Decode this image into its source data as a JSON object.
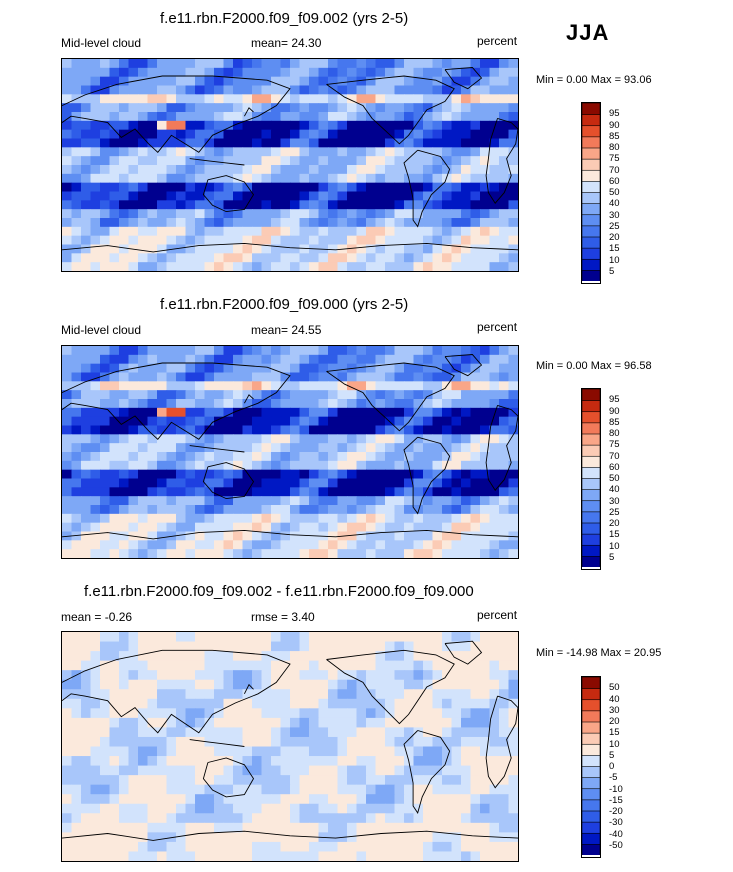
{
  "season": "JJA",
  "panels": [
    {
      "title": "f.e11.rbn.F2000.f09_f09.002 (yrs 2-5)",
      "left_label": "Mid-level cloud",
      "center_label": "mean=  24.30",
      "right_label": "percent",
      "minmax": "Min =   0.00 Max =  93.06",
      "kind": "abs"
    },
    {
      "title": "f.e11.rbn.F2000.f09_f09.000 (yrs 2-5)",
      "left_label": "Mid-level cloud",
      "center_label": "mean=  24.55",
      "right_label": "percent",
      "minmax": "Min =   0.00 Max =  96.58",
      "kind": "abs"
    },
    {
      "title": "f.e11.rbn.F2000.f09_f09.002 - f.e11.rbn.F2000.f09_f09.000",
      "left_label": "mean =  -0.26",
      "center_label": "rmse =   3.40",
      "right_label": "percent",
      "minmax": "Min = -14.98 Max =  20.95",
      "kind": "diff"
    }
  ],
  "chart_data": [
    {
      "type": "heatmap",
      "title": "f.e11.rbn.F2000.f09_f09.002 (yrs 2-5)",
      "variable": "Mid-level cloud",
      "units": "percent",
      "mean": 24.3,
      "min": 0.0,
      "max": 93.06,
      "colorbar_levels": [
        5,
        10,
        15,
        20,
        25,
        30,
        40,
        50,
        60,
        70,
        75,
        80,
        85,
        90,
        95
      ],
      "colors": [
        "#00008f",
        "#0018c4",
        "#1e3fe0",
        "#2f5de8",
        "#4677ee",
        "#5e8ef2",
        "#7ea8f6",
        "#a8c6fa",
        "#d2e3fc",
        "#fbe9dc",
        "#fbcbb5",
        "#f9a688",
        "#f27a5a",
        "#e5502c",
        "#c62a10",
        "#8a0a00"
      ]
    },
    {
      "type": "heatmap",
      "title": "f.e11.rbn.F2000.f09_f09.000 (yrs 2-5)",
      "variable": "Mid-level cloud",
      "units": "percent",
      "mean": 24.55,
      "min": 0.0,
      "max": 96.58,
      "colorbar_levels": [
        5,
        10,
        15,
        20,
        25,
        30,
        40,
        50,
        60,
        70,
        75,
        80,
        85,
        90,
        95
      ],
      "colors": [
        "#00008f",
        "#0018c4",
        "#1e3fe0",
        "#2f5de8",
        "#4677ee",
        "#5e8ef2",
        "#7ea8f6",
        "#a8c6fa",
        "#d2e3fc",
        "#fbe9dc",
        "#fbcbb5",
        "#f9a688",
        "#f27a5a",
        "#e5502c",
        "#c62a10",
        "#8a0a00"
      ]
    },
    {
      "type": "heatmap",
      "title": "f.e11.rbn.F2000.f09_f09.002 - f.e11.rbn.F2000.f09_f09.000",
      "units": "percent",
      "mean": -0.26,
      "rmse": 3.4,
      "min": -14.98,
      "max": 20.95,
      "colorbar_levels": [
        -50,
        -40,
        -30,
        -20,
        -15,
        -10,
        -5,
        0,
        5,
        10,
        15,
        20,
        30,
        40,
        50
      ],
      "colors": [
        "#00008f",
        "#0018c4",
        "#1e3fe0",
        "#2f5de8",
        "#4677ee",
        "#5e8ef2",
        "#7ea8f6",
        "#a8c6fa",
        "#d2e3fc",
        "#fbe9dc",
        "#fbcbb5",
        "#f9a688",
        "#f27a5a",
        "#e5502c",
        "#c62a10",
        "#8a0a00"
      ]
    }
  ]
}
